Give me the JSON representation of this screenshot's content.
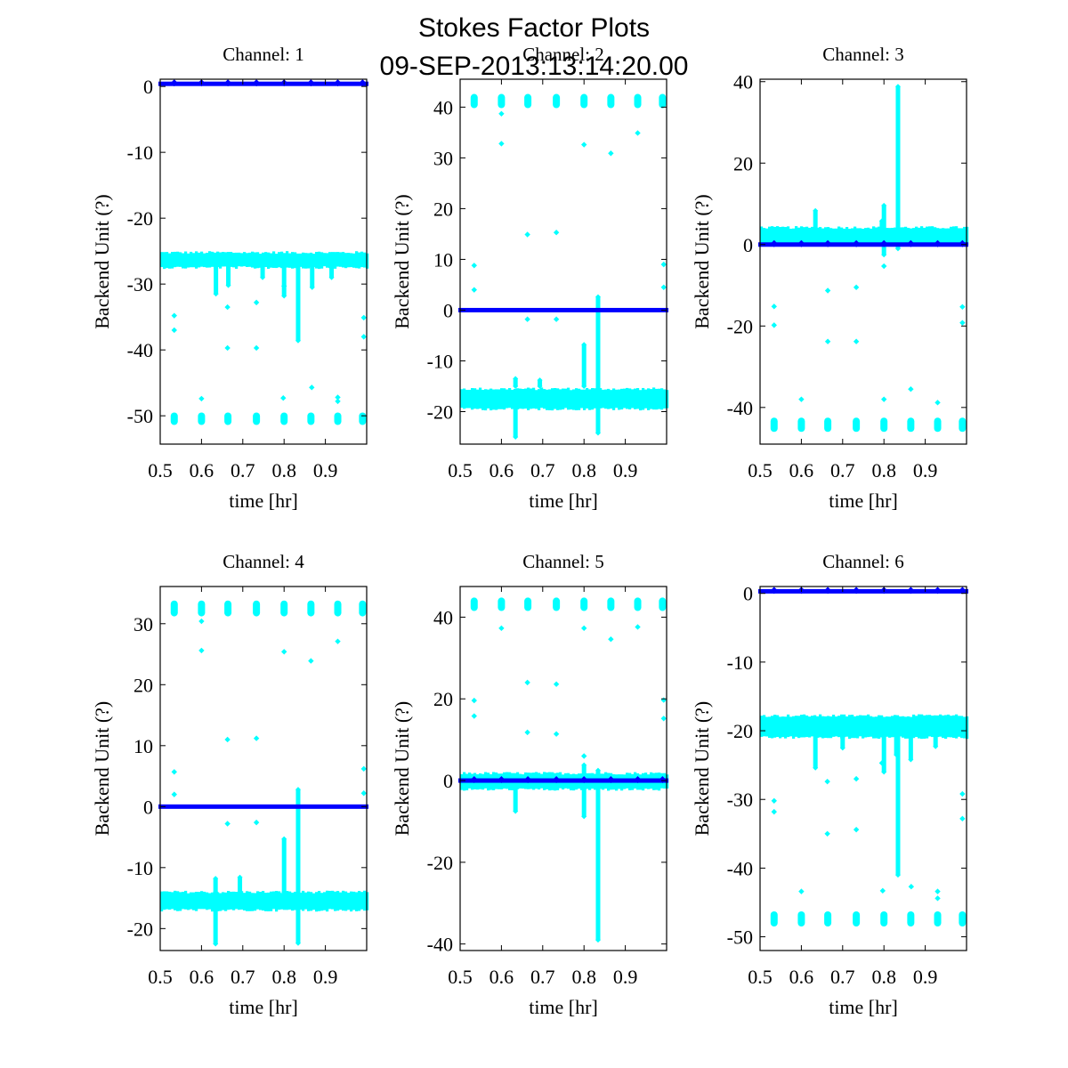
{
  "figure": {
    "title_line1": "Stokes Factor Plots",
    "title_line2": "09-SEP-2013:13:14:20.00"
  },
  "colors": {
    "data_series": "#00FFFF",
    "reference_series": "#0000FF",
    "axes": "#000000",
    "background": "#FFFFFF"
  },
  "chart_data": [
    {
      "type": "scatter",
      "title": "Channel: 1",
      "xlabel": "time [hr]",
      "ylabel": "Backend Unit (?)",
      "xlim": [
        0.5,
        1.0
      ],
      "ylim": [
        -54.3,
        1.1
      ],
      "xticks": [
        0.5,
        0.6,
        0.7,
        0.8,
        0.9
      ],
      "xtick_labels": [
        "0.5",
        "0.6",
        "0.7",
        "0.8",
        "0.9"
      ],
      "yticks": [
        0,
        -10,
        -20,
        -30,
        -40,
        -50
      ],
      "ytick_labels": [
        "0",
        "-10",
        "-20",
        "-30",
        "-40",
        "-50"
      ],
      "grid": false,
      "series": [
        {
          "name": "cyan",
          "band": {
            "x": [
              0.5,
              1.0
            ],
            "low": -27.5,
            "high": -25.2
          },
          "spikes": [
            {
              "x": 0.635,
              "y0": -27,
              "y1": -31.5
            },
            {
              "x": 0.665,
              "y0": -27,
              "y1": -30.2
            },
            {
              "x": 0.748,
              "y0": -27,
              "y1": -29.0
            },
            {
              "x": 0.8,
              "y0": -27,
              "y1": -31.8
            },
            {
              "x": 0.834,
              "y0": -27,
              "y1": -38.6
            },
            {
              "x": 0.868,
              "y0": -27,
              "y1": -30.5
            },
            {
              "x": 0.915,
              "y0": -27,
              "y1": -29.0
            }
          ],
          "clusters": {
            "x": [
              0.534,
              0.6,
              0.664,
              0.733,
              0.8,
              0.865,
              0.93,
              0.99
            ],
            "low": -51.4,
            "high": -49.5
          },
          "outliers": [
            [
              0.534,
              -34.8
            ],
            [
              0.534,
              -37.0
            ],
            [
              0.663,
              -33.5
            ],
            [
              0.663,
              -39.7
            ],
            [
              0.733,
              -32.8
            ],
            [
              0.733,
              -39.7
            ],
            [
              0.6,
              -47.4
            ],
            [
              0.798,
              -47.3
            ],
            [
              0.8,
              -30.3
            ],
            [
              0.867,
              -45.7
            ],
            [
              0.93,
              -47.2
            ],
            [
              0.93,
              -47.8
            ],
            [
              0.993,
              -35.1
            ],
            [
              0.993,
              -38.0
            ]
          ]
        },
        {
          "name": "blue",
          "level": 0.4,
          "markers_x": [
            0.534,
            0.6,
            0.664,
            0.733,
            0.8,
            0.865,
            0.93,
            0.99
          ]
        }
      ]
    },
    {
      "type": "scatter",
      "title": "Channel: 2",
      "xlabel": "time [hr]",
      "ylabel": "Backend Unit (?)",
      "xlim": [
        0.5,
        1.0
      ],
      "ylim": [
        -26.4,
        45.5
      ],
      "xticks": [
        0.5,
        0.6,
        0.7,
        0.8,
        0.9
      ],
      "xtick_labels": [
        "0.5",
        "0.6",
        "0.7",
        "0.8",
        "0.9"
      ],
      "yticks": [
        40,
        30,
        20,
        10,
        0,
        -10,
        -20
      ],
      "ytick_labels": [
        "40",
        "30",
        "20",
        "10",
        "0",
        "-10",
        "-20"
      ],
      "grid": false,
      "series": [
        {
          "name": "cyan",
          "band": {
            "x": [
              0.5,
              1.0
            ],
            "low": -19.5,
            "high": -15.5
          },
          "spikes": [
            {
              "x": 0.634,
              "y0": -19,
              "y1": -25.0
            },
            {
              "x": 0.634,
              "y0": -15,
              "y1": -13.5
            },
            {
              "x": 0.693,
              "y0": -15,
              "y1": -13.8
            },
            {
              "x": 0.8,
              "y0": -15,
              "y1": -6.8
            },
            {
              "x": 0.834,
              "y0": -24.2,
              "y1": 2.6
            }
          ],
          "clusters": {
            "x": [
              0.534,
              0.6,
              0.664,
              0.733,
              0.8,
              0.865,
              0.93,
              0.99
            ],
            "low": 39.8,
            "high": 42.6
          },
          "outliers": [
            [
              0.534,
              8.8
            ],
            [
              0.534,
              4.0
            ],
            [
              0.6,
              32.8
            ],
            [
              0.6,
              38.7
            ],
            [
              0.663,
              14.9
            ],
            [
              0.663,
              -1.8
            ],
            [
              0.733,
              15.3
            ],
            [
              0.733,
              -1.8
            ],
            [
              0.8,
              32.6
            ],
            [
              0.865,
              30.9
            ],
            [
              0.93,
              34.9
            ],
            [
              0.993,
              9.0
            ],
            [
              0.993,
              4.5
            ]
          ]
        },
        {
          "name": "blue",
          "level": 0.0,
          "markers_x": []
        }
      ]
    },
    {
      "type": "scatter",
      "title": "Channel: 3",
      "xlabel": "time [hr]",
      "ylabel": "Backend Unit (?)",
      "xlim": [
        0.5,
        1.0
      ],
      "ylim": [
        -49.0,
        40.6
      ],
      "xticks": [
        0.5,
        0.6,
        0.7,
        0.8,
        0.9
      ],
      "xtick_labels": [
        "0.5",
        "0.6",
        "0.7",
        "0.8",
        "0.9"
      ],
      "yticks": [
        40,
        20,
        0,
        -20,
        -40
      ],
      "ytick_labels": [
        "40",
        "20",
        "0",
        "-20",
        "-40"
      ],
      "grid": false,
      "series": [
        {
          "name": "cyan",
          "band": {
            "x": [
              0.5,
              1.0
            ],
            "low": 0.0,
            "high": 4.2
          },
          "spikes": [
            {
              "x": 0.634,
              "y0": 3,
              "y1": 8.3
            },
            {
              "x": 0.8,
              "y0": -2.5,
              "y1": 9.6
            },
            {
              "x": 0.834,
              "y0": -1,
              "y1": 38.8
            },
            {
              "x": 0.795,
              "y0": 3,
              "y1": 5.8
            }
          ],
          "clusters": {
            "x": [
              0.534,
              0.6,
              0.664,
              0.733,
              0.8,
              0.865,
              0.93,
              0.99
            ],
            "low": -46.0,
            "high": -42.5
          },
          "outliers": [
            [
              0.534,
              -15.2
            ],
            [
              0.534,
              -19.8
            ],
            [
              0.664,
              -11.3
            ],
            [
              0.664,
              -23.8
            ],
            [
              0.733,
              -10.5
            ],
            [
              0.733,
              -23.8
            ],
            [
              0.6,
              -38.0
            ],
            [
              0.8,
              -5.3
            ],
            [
              0.8,
              -38.0
            ],
            [
              0.865,
              -35.5
            ],
            [
              0.93,
              -38.8
            ],
            [
              0.99,
              -15.3
            ],
            [
              0.99,
              -19.2
            ]
          ]
        },
        {
          "name": "blue",
          "level": 0.0,
          "markers_x": [
            0.534,
            0.6,
            0.664,
            0.733,
            0.8,
            0.865,
            0.93,
            0.99
          ]
        }
      ]
    },
    {
      "type": "scatter",
      "title": "Channel: 4",
      "xlabel": "time [hr]",
      "ylabel": "Backend Unit (?)",
      "xlim": [
        0.5,
        1.0
      ],
      "ylim": [
        -23.6,
        36.1
      ],
      "xticks": [
        0.5,
        0.6,
        0.7,
        0.8,
        0.9
      ],
      "xtick_labels": [
        "0.5",
        "0.6",
        "0.7",
        "0.8",
        "0.9"
      ],
      "yticks": [
        30,
        20,
        10,
        0,
        -10,
        -20
      ],
      "ytick_labels": [
        "30",
        "20",
        "10",
        "0",
        "-10",
        "-20"
      ],
      "grid": false,
      "series": [
        {
          "name": "cyan",
          "band": {
            "x": [
              0.5,
              1.0
            ],
            "low": -17.0,
            "high": -14.0
          },
          "spikes": [
            {
              "x": 0.634,
              "y0": -17,
              "y1": -22.5
            },
            {
              "x": 0.634,
              "y0": -14,
              "y1": -11.8
            },
            {
              "x": 0.693,
              "y0": -14,
              "y1": -11.6
            },
            {
              "x": 0.8,
              "y0": -14,
              "y1": -5.3
            },
            {
              "x": 0.834,
              "y0": -22.4,
              "y1": 2.8
            }
          ],
          "clusters": {
            "x": [
              0.534,
              0.6,
              0.664,
              0.733,
              0.8,
              0.865,
              0.93,
              0.99
            ],
            "low": 31.2,
            "high": 33.8
          },
          "outliers": [
            [
              0.534,
              5.7
            ],
            [
              0.534,
              2.0
            ],
            [
              0.6,
              25.6
            ],
            [
              0.6,
              30.4
            ],
            [
              0.663,
              11.0
            ],
            [
              0.663,
              -2.8
            ],
            [
              0.733,
              11.2
            ],
            [
              0.733,
              -2.6
            ],
            [
              0.8,
              25.4
            ],
            [
              0.865,
              23.9
            ],
            [
              0.93,
              27.1
            ],
            [
              0.993,
              6.2
            ],
            [
              0.993,
              2.2
            ]
          ]
        },
        {
          "name": "blue",
          "level": 0.0,
          "markers_x": []
        }
      ]
    },
    {
      "type": "scatter",
      "title": "Channel: 5",
      "xlabel": "time [hr]",
      "ylabel": "Backend Unit (?)",
      "xlim": [
        0.5,
        1.0
      ],
      "ylim": [
        -41.6,
        47.5
      ],
      "xticks": [
        0.5,
        0.6,
        0.7,
        0.8,
        0.9
      ],
      "xtick_labels": [
        "0.5",
        "0.6",
        "0.7",
        "0.8",
        "0.9"
      ],
      "yticks": [
        40,
        20,
        0,
        -20,
        -40
      ],
      "ytick_labels": [
        "40",
        "20",
        "0",
        "-20",
        "-40"
      ],
      "grid": false,
      "series": [
        {
          "name": "cyan",
          "band": {
            "x": [
              0.5,
              1.0
            ],
            "low": -2.2,
            "high": 1.8
          },
          "spikes": [
            {
              "x": 0.634,
              "y0": -2,
              "y1": -7.5
            },
            {
              "x": 0.8,
              "y0": -2,
              "y1": -8.8
            },
            {
              "x": 0.8,
              "y0": 1.5,
              "y1": 3.8
            },
            {
              "x": 0.834,
              "y0": -39.0,
              "y1": 2.5
            }
          ],
          "clusters": {
            "x": [
              0.534,
              0.6,
              0.664,
              0.733,
              0.8,
              0.865,
              0.93,
              0.99
            ],
            "low": 41.5,
            "high": 44.8
          },
          "outliers": [
            [
              0.534,
              19.6
            ],
            [
              0.534,
              15.8
            ],
            [
              0.6,
              37.3
            ],
            [
              0.663,
              24.0
            ],
            [
              0.663,
              11.8
            ],
            [
              0.733,
              23.6
            ],
            [
              0.733,
              11.4
            ],
            [
              0.8,
              37.3
            ],
            [
              0.8,
              6.0
            ],
            [
              0.865,
              34.6
            ],
            [
              0.93,
              37.6
            ],
            [
              0.993,
              19.7
            ],
            [
              0.993,
              15.2
            ]
          ]
        },
        {
          "name": "blue",
          "level": 0.0,
          "markers_x": [
            0.534,
            0.6,
            0.664,
            0.733,
            0.8,
            0.865,
            0.93,
            0.99
          ]
        }
      ]
    },
    {
      "type": "scatter",
      "title": "Channel: 6",
      "xlabel": "time [hr]",
      "ylabel": "Backend Unit (?)",
      "xlim": [
        0.5,
        1.0
      ],
      "ylim": [
        -52.0,
        1.0
      ],
      "xticks": [
        0.5,
        0.6,
        0.7,
        0.8,
        0.9
      ],
      "xtick_labels": [
        "0.5",
        "0.6",
        "0.7",
        "0.8",
        "0.9"
      ],
      "yticks": [
        0,
        -10,
        -20,
        -30,
        -40,
        -50
      ],
      "ytick_labels": [
        "0",
        "-10",
        "-20",
        "-30",
        "-40",
        "-50"
      ],
      "grid": false,
      "series": [
        {
          "name": "cyan",
          "band": {
            "x": [
              0.5,
              1.0
            ],
            "low": -21.0,
            "high": -17.8
          },
          "spikes": [
            {
              "x": 0.634,
              "y0": -20,
              "y1": -25.4
            },
            {
              "x": 0.7,
              "y0": -20,
              "y1": -22.5
            },
            {
              "x": 0.8,
              "y0": -20,
              "y1": -26.0
            },
            {
              "x": 0.834,
              "y0": -20,
              "y1": -41.0
            },
            {
              "x": 0.865,
              "y0": -20,
              "y1": -24.2
            },
            {
              "x": 0.83,
              "y0": -20,
              "y1": -23.5
            },
            {
              "x": 0.925,
              "y0": -20,
              "y1": -22.3
            }
          ],
          "clusters": {
            "x": [
              0.534,
              0.6,
              0.664,
              0.733,
              0.8,
              0.865,
              0.93,
              0.99
            ],
            "low": -48.5,
            "high": -46.3
          },
          "outliers": [
            [
              0.534,
              -30.2
            ],
            [
              0.534,
              -31.8
            ],
            [
              0.663,
              -27.4
            ],
            [
              0.663,
              -35.0
            ],
            [
              0.733,
              -27.0
            ],
            [
              0.733,
              -34.4
            ],
            [
              0.6,
              -43.4
            ],
            [
              0.797,
              -43.3
            ],
            [
              0.795,
              -24.7
            ],
            [
              0.866,
              -42.7
            ],
            [
              0.93,
              -43.4
            ],
            [
              0.93,
              -44.4
            ],
            [
              0.99,
              -29.2
            ],
            [
              0.99,
              -32.8
            ]
          ]
        },
        {
          "name": "blue",
          "level": 0.3,
          "markers_x": [
            0.534,
            0.6,
            0.664,
            0.733,
            0.8,
            0.865,
            0.93,
            0.99
          ]
        }
      ]
    }
  ]
}
